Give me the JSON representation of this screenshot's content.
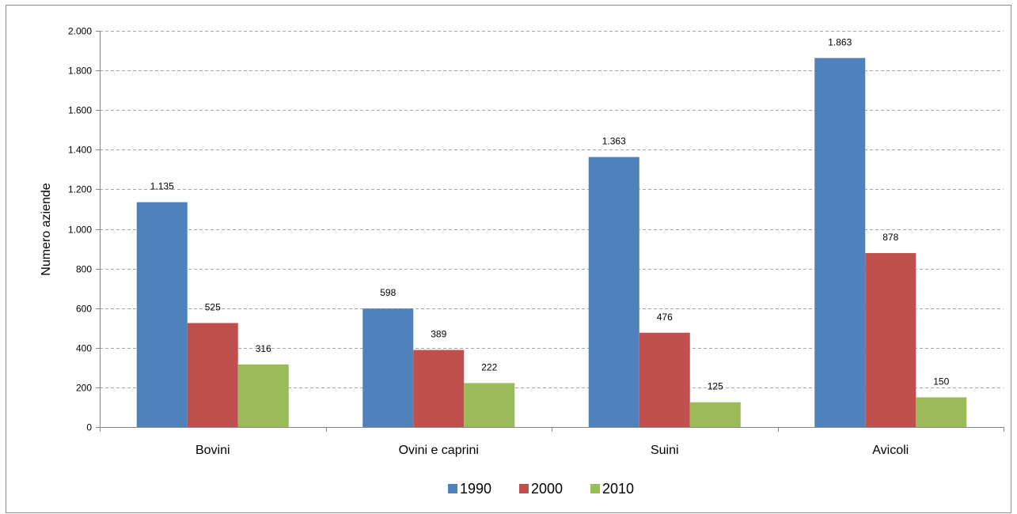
{
  "chart_data": {
    "type": "bar",
    "title": "",
    "xlabel": "",
    "ylabel": "Numero aziende",
    "categories": [
      "Bovini",
      "Ovini e caprini",
      "Suini",
      "Avicoli"
    ],
    "series": [
      {
        "name": "1990",
        "values": [
          1135,
          598,
          1363,
          1863
        ],
        "labels": [
          "1.135",
          "598",
          "1.363",
          "1.863"
        ],
        "color": "#4F81BD"
      },
      {
        "name": "2000",
        "values": [
          525,
          389,
          476,
          878
        ],
        "labels": [
          "525",
          "389",
          "476",
          "878"
        ],
        "color": "#C0504D"
      },
      {
        "name": "2010",
        "values": [
          316,
          222,
          125,
          150
        ],
        "labels": [
          "316",
          "222",
          "125",
          "150"
        ],
        "color": "#9BBB59"
      }
    ],
    "ylim": [
      0,
      2000
    ],
    "yticks": [
      0,
      200,
      400,
      600,
      800,
      1000,
      1200,
      1400,
      1600,
      1800,
      2000
    ],
    "ytick_labels": [
      "0",
      "200",
      "400",
      "600",
      "800",
      "1.000",
      "1.200",
      "1.400",
      "1.600",
      "1.800",
      "2.000"
    ],
    "grid": true,
    "legend_position": "bottom"
  }
}
